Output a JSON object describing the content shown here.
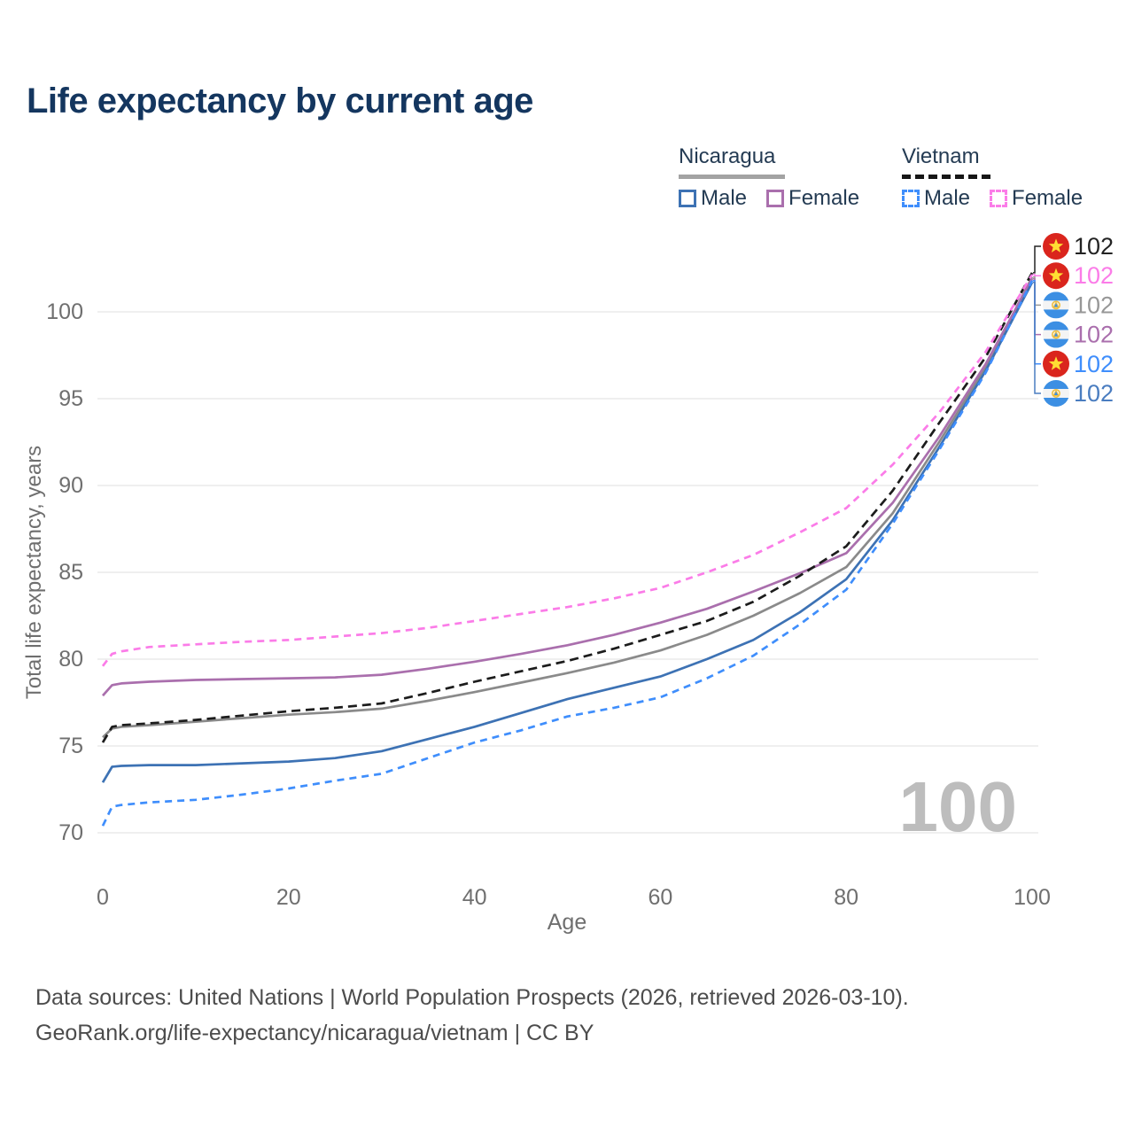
{
  "page": {
    "title": "Life expectancy by current age",
    "background": "#ffffff"
  },
  "legend": {
    "groups": [
      {
        "name": "Nicaragua",
        "underline": "solid",
        "underline_color": "#a3a3a3",
        "items": [
          {
            "label": "Male",
            "color": "#3d72b4",
            "dash": false
          },
          {
            "label": "Female",
            "color": "#aa6fad",
            "dash": false
          }
        ]
      },
      {
        "name": "Vietnam",
        "underline": "dashed",
        "underline_color": "#161616",
        "items": [
          {
            "label": "Male",
            "color": "#3f8efc",
            "dash": true
          },
          {
            "label": "Female",
            "color": "#fb7ce8",
            "dash": true
          }
        ]
      }
    ]
  },
  "chart_data": {
    "type": "line",
    "title": "Life expectancy by current age",
    "xlabel": "Age",
    "ylabel": "Total life expectancy, years",
    "x_ticks": [
      0,
      20,
      40,
      60,
      80,
      100
    ],
    "y_ticks": [
      70,
      75,
      80,
      85,
      90,
      95,
      100
    ],
    "xlim": [
      0,
      100
    ],
    "ylim": [
      70,
      100
    ],
    "grid": "horizontal",
    "legend_position": "top-right",
    "age_watermark": "100",
    "ages": [
      0,
      1,
      2,
      5,
      10,
      15,
      20,
      25,
      30,
      35,
      40,
      45,
      50,
      55,
      60,
      65,
      70,
      75,
      80,
      85,
      90,
      95,
      100
    ],
    "series": [
      {
        "id": "ni_total",
        "country": "Nicaragua",
        "group": "Both sexes",
        "flag": "nicaragua",
        "color": "#8a8a8a",
        "label_color": "#979797",
        "dash": false,
        "end_label": "102",
        "end_value": 102.0,
        "values": [
          75.5,
          76.0,
          76.1,
          76.2,
          76.4,
          76.6,
          76.8,
          76.95,
          77.15,
          77.6,
          78.1,
          78.65,
          79.2,
          79.8,
          80.5,
          81.4,
          82.5,
          83.8,
          85.3,
          88.4,
          92.5,
          96.8,
          102.0
        ]
      },
      {
        "id": "ni_female",
        "country": "Nicaragua",
        "group": "Female",
        "flag": "nicaragua",
        "color": "#aa6fad",
        "label_color": "#aa6fad",
        "dash": false,
        "end_label": "102",
        "end_value": 101.9,
        "values": [
          77.9,
          78.5,
          78.6,
          78.7,
          78.8,
          78.85,
          78.9,
          78.95,
          79.1,
          79.45,
          79.85,
          80.3,
          80.8,
          81.4,
          82.1,
          82.9,
          83.9,
          84.95,
          86.1,
          89.0,
          92.8,
          97.0,
          101.9
        ]
      },
      {
        "id": "ni_male",
        "country": "Nicaragua",
        "group": "Male",
        "flag": "nicaragua",
        "color": "#3d72b4",
        "label_color": "#4a7dc0",
        "dash": false,
        "end_label": "102",
        "end_value": 101.7,
        "values": [
          72.9,
          73.8,
          73.85,
          73.9,
          73.9,
          74.0,
          74.1,
          74.3,
          74.7,
          75.4,
          76.1,
          76.9,
          77.7,
          78.35,
          79.0,
          80.0,
          81.1,
          82.7,
          84.6,
          88.0,
          92.2,
          96.6,
          101.7
        ]
      },
      {
        "id": "vn_male",
        "country": "Vietnam",
        "group": "Male",
        "flag": "vietnam",
        "color": "#3f8efc",
        "label_color": "#3f8efc",
        "dash": true,
        "end_label": "102",
        "end_value": 101.8,
        "values": [
          70.4,
          71.5,
          71.6,
          71.75,
          71.9,
          72.2,
          72.55,
          73.0,
          73.4,
          74.3,
          75.2,
          75.9,
          76.7,
          77.2,
          77.8,
          78.9,
          80.2,
          82.0,
          84.0,
          87.8,
          92.05,
          96.5,
          101.8
        ]
      },
      {
        "id": "vn_total",
        "country": "Vietnam",
        "group": "Both sexes",
        "flag": "vietnam",
        "color": "#1c1c1c",
        "label_color": "#232323",
        "dash": true,
        "end_label": "102",
        "end_value": 102.25,
        "values": [
          75.2,
          76.1,
          76.2,
          76.3,
          76.5,
          76.75,
          77.0,
          77.2,
          77.45,
          78.05,
          78.7,
          79.3,
          79.9,
          80.6,
          81.4,
          82.2,
          83.3,
          84.8,
          86.5,
          89.7,
          93.6,
          97.4,
          102.25
        ]
      },
      {
        "id": "vn_female",
        "country": "Vietnam",
        "group": "Female",
        "flag": "vietnam",
        "color": "#fb7ce8",
        "label_color": "#fb7ce8",
        "dash": true,
        "end_label": "102",
        "end_value": 102.15,
        "values": [
          79.6,
          80.3,
          80.45,
          80.7,
          80.85,
          81.0,
          81.1,
          81.3,
          81.5,
          81.8,
          82.2,
          82.6,
          83.0,
          83.5,
          84.1,
          85.0,
          86.0,
          87.3,
          88.7,
          91.2,
          94.2,
          97.7,
          102.15
        ]
      }
    ],
    "end_label_order": [
      "vn_total",
      "vn_female",
      "ni_total",
      "ni_female",
      "vn_male",
      "ni_male"
    ]
  },
  "icons": {
    "vietnam_flag": {
      "red": "#da251d",
      "star": "#ffde33"
    },
    "nicaragua_flag": {
      "blue": "#3c8fe3",
      "white": "#f4f4f4",
      "emblem": "#f0c040"
    }
  },
  "footer": {
    "line1": "Data sources: United Nations | World Population Prospects (2026, retrieved 2026-03-10).",
    "line2": "GeoRank.org/life-expectancy/nicaragua/vietnam | CC BY"
  }
}
